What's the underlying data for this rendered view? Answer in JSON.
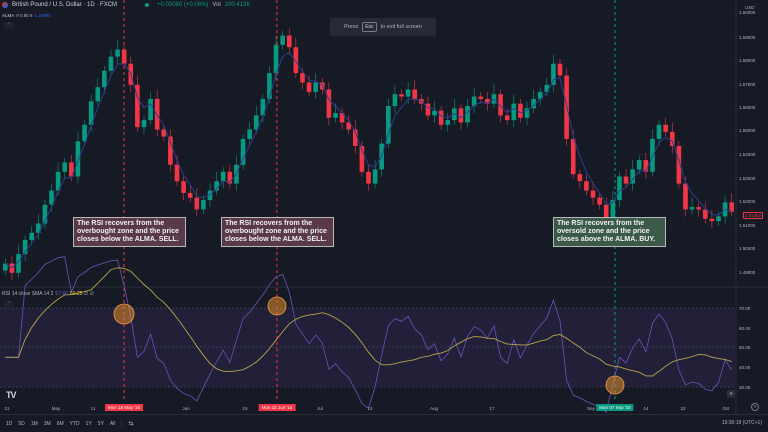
{
  "header": {
    "symbol": "British Pound / U.S. Dollar · 1D · FXCM",
    "change": "+0.00080 (+0.06%)",
    "vol_label": "Vol",
    "vol_value": "200.413K"
  },
  "alma": {
    "name": "ALMA",
    "params": "9 0.85 6",
    "value": "1.26985"
  },
  "fullscreen_hint": {
    "press": "Press",
    "key": "Esc",
    "rest": "to exit full screen"
  },
  "price_axis": {
    "currency": "USD",
    "ticks": [
      "1.60000",
      "1.59000",
      "1.58000",
      "1.57000",
      "1.56000",
      "1.55000",
      "1.54000",
      "1.53000",
      "1.52000",
      "1.51000",
      "1.50000",
      "1.49000"
    ],
    "last_price": "1.51452"
  },
  "rsi": {
    "label": "RSI 14 close SMA 14 2",
    "rsi_value": "57.66",
    "sma_value": "60.25",
    "extra": "∅ ∅",
    "ticks": [
      "70.00",
      "60.00",
      "50.00",
      "40.00",
      "30.00"
    ]
  },
  "annotations": [
    {
      "type": "sell",
      "text": "The RSI recovers from the overbought zone and the price closes below the ALMA. SELL."
    },
    {
      "type": "sell",
      "text": "The RSI recovers from the overbought zone and the price closes below the ALMA. SELL."
    },
    {
      "type": "buy",
      "text": "The RSI recovers from the oversold zone and the price closes above the ALMA. BUY."
    }
  ],
  "time_axis": {
    "labels": [
      "21",
      "May",
      "11",
      "Jun",
      "15",
      "Jul",
      "13",
      "Aug",
      "17",
      "Sep",
      "14",
      "22",
      "Oct"
    ],
    "markers": [
      "Mon 18 May '15",
      "Mon 22 Jun '15",
      "Mon 07 Sep '15"
    ]
  },
  "bottom_bar": {
    "timeframes": [
      "1D",
      "5D",
      "1M",
      "3M",
      "6M",
      "YTD",
      "1Y",
      "5Y",
      "All"
    ],
    "clock": "15:30:18 (UTC+1)"
  },
  "colors": {
    "up": "#089981",
    "down": "#f23645",
    "alma": "#2962ff",
    "rsi": "#7e57c2",
    "rsi_sma": "#c9b24a"
  },
  "chart_data": [
    {
      "type": "candlestick",
      "title": "British Pound / U.S. Dollar · 1D · FXCM",
      "ylabel": "USD",
      "ylim": [
        1.485,
        1.605
      ],
      "overlay": "ALMA 9 0.85 6",
      "x_ticks": [
        "21",
        "May",
        "11",
        "Jun",
        "15",
        "Jul",
        "13",
        "Aug",
        "17",
        "Sep",
        "14",
        "22",
        "Oct"
      ],
      "signals": [
        {
          "date": "Mon 18 May '15",
          "signal": "SELL"
        },
        {
          "date": "Mon 22 Jun '15",
          "signal": "SELL"
        },
        {
          "date": "Mon 07 Sep '15",
          "signal": "BUY"
        }
      ],
      "last_price": 1.51452,
      "approx_closes": [
        1.493,
        1.489,
        1.497,
        1.503,
        1.506,
        1.51,
        1.518,
        1.524,
        1.532,
        1.536,
        1.53,
        1.545,
        1.552,
        1.562,
        1.568,
        1.575,
        1.581,
        1.584,
        1.578,
        1.569,
        1.551,
        1.554,
        1.563,
        1.55,
        1.547,
        1.535,
        1.528,
        1.523,
        1.521,
        1.516,
        1.52,
        1.524,
        1.528,
        1.532,
        1.527,
        1.535,
        1.546,
        1.55,
        1.556,
        1.563,
        1.574,
        1.586,
        1.59,
        1.585,
        1.574,
        1.57,
        1.566,
        1.57,
        1.567,
        1.555,
        1.557,
        1.553,
        1.55,
        1.543,
        1.532,
        1.527,
        1.533,
        1.544,
        1.56,
        1.565,
        1.564,
        1.567,
        1.563,
        1.561,
        1.556,
        1.558,
        1.552,
        1.554,
        1.559,
        1.553,
        1.56,
        1.564,
        1.563,
        1.561,
        1.565,
        1.556,
        1.554,
        1.561,
        1.555,
        1.559,
        1.563,
        1.566,
        1.569,
        1.578,
        1.573,
        1.546,
        1.531,
        1.528,
        1.524,
        1.521,
        1.518,
        1.512,
        1.52,
        1.53,
        1.527,
        1.533,
        1.537,
        1.532,
        1.546,
        1.552,
        1.549,
        1.543,
        1.527,
        1.516,
        1.517,
        1.516,
        1.512,
        1.511,
        1.513,
        1.519,
        1.515
      ]
    },
    {
      "type": "line",
      "title": "RSI 14 close SMA 14 2",
      "ylim": [
        25,
        80
      ],
      "bands": {
        "upper": 70,
        "middle": 50,
        "lower": 30
      },
      "series": [
        {
          "name": "RSI",
          "last": 57.66
        },
        {
          "name": "SMA",
          "last": 60.25
        }
      ]
    }
  ]
}
